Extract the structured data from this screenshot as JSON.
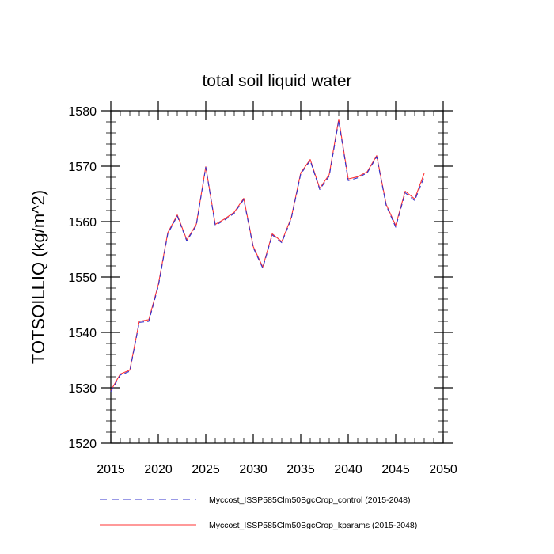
{
  "chart_data": {
    "type": "line",
    "title": "total soil liquid water",
    "ylabel": "TOTSOILLIQ  (kg/m^2)",
    "xlabel": "",
    "xlim": [
      2015,
      2050
    ],
    "ylim": [
      1520,
      1580
    ],
    "x_ticks": [
      2015,
      2020,
      2025,
      2030,
      2035,
      2040,
      2045,
      2050
    ],
    "x_tick_labels": [
      "2015",
      "2020",
      "2025",
      "2030",
      "2035",
      "2040",
      "2045",
      "2050"
    ],
    "y_ticks": [
      1520,
      1530,
      1540,
      1550,
      1560,
      1570,
      1580
    ],
    "y_tick_labels": [
      "1520",
      "1530",
      "1540",
      "1550",
      "1560",
      "1570",
      "1580"
    ],
    "grid": false,
    "legend_position": "bottom",
    "x": [
      2015,
      2016,
      2017,
      2018,
      2019,
      2020,
      2021,
      2022,
      2023,
      2024,
      2025,
      2026,
      2027,
      2028,
      2029,
      2030,
      2031,
      2032,
      2033,
      2034,
      2035,
      2036,
      2037,
      2038,
      2039,
      2040,
      2041,
      2042,
      2043,
      2044,
      2045,
      2046,
      2047,
      2048
    ],
    "series": [
      {
        "name": "Myccost_ISSP585Clm50BgcCrop_control (2015-2048)",
        "color": "#3333cc",
        "dash": "dashed",
        "values": [
          1529.3,
          1532.3,
          1533.0,
          1541.8,
          1542.0,
          1548.3,
          1557.8,
          1561.0,
          1556.5,
          1559.3,
          1569.8,
          1559.3,
          1560.3,
          1561.5,
          1564.0,
          1555.3,
          1551.6,
          1557.6,
          1556.2,
          1560.5,
          1568.6,
          1571.0,
          1565.8,
          1568.2,
          1578.2,
          1567.4,
          1567.9,
          1568.8,
          1571.7,
          1562.9,
          1559.0,
          1565.2,
          1563.8,
          1568.1
        ]
      },
      {
        "name": "Myccost_ISSP585Clm50BgcCrop_kparams (2015-2048)",
        "color": "#ff3333",
        "dash": "solid",
        "values": [
          1529.5,
          1532.5,
          1533.2,
          1542.0,
          1542.3,
          1548.6,
          1558.0,
          1561.2,
          1556.7,
          1559.5,
          1569.9,
          1559.5,
          1560.5,
          1561.7,
          1564.2,
          1555.5,
          1551.8,
          1557.8,
          1556.4,
          1560.7,
          1568.8,
          1571.2,
          1566.0,
          1568.5,
          1578.5,
          1567.7,
          1568.1,
          1569.0,
          1571.9,
          1563.1,
          1559.3,
          1565.5,
          1564.1,
          1568.7
        ]
      }
    ]
  }
}
